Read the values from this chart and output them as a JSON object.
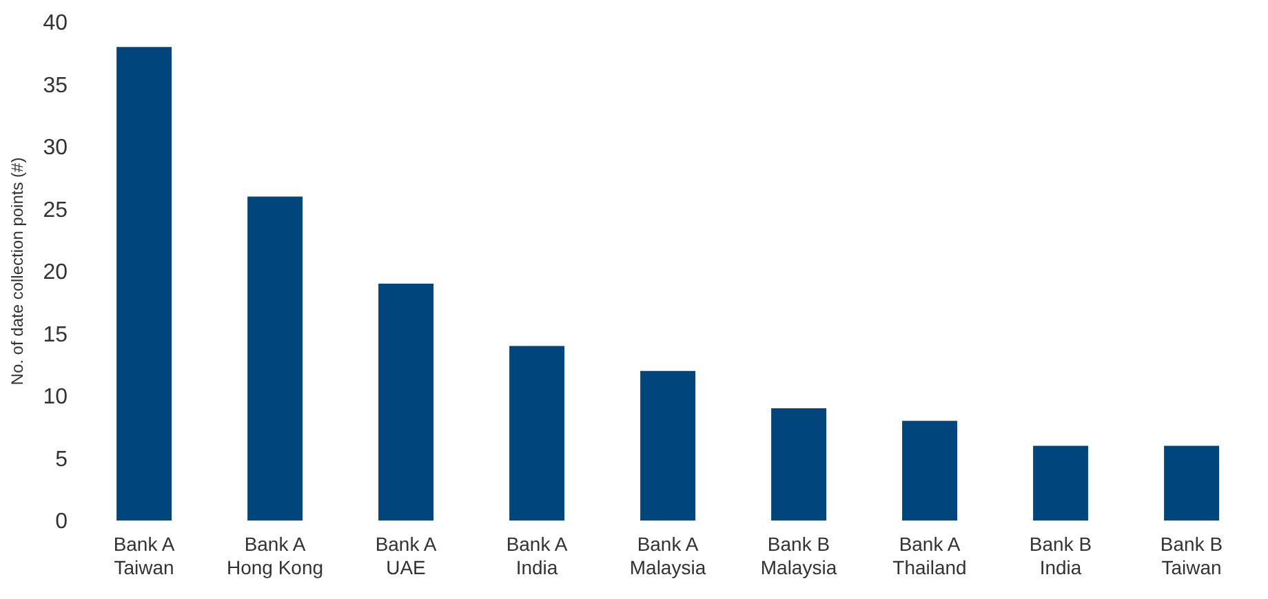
{
  "chart_data": {
    "type": "bar",
    "ylabel": "No. of date collection points (#)",
    "categories": [
      "Bank A\nTaiwan",
      "Bank A\nHong Kong",
      "Bank A\nUAE",
      "Bank A\nIndia",
      "Bank A\nMalaysia",
      "Bank B\nMalaysia",
      "Bank A\nThailand",
      "Bank B\nIndia",
      "Bank B\nTaiwan"
    ],
    "values": [
      38,
      26,
      19,
      14,
      12,
      9,
      8,
      6,
      6
    ],
    "color": "#00457c",
    "ylim": [
      0,
      40
    ],
    "yticks": [
      0,
      5,
      10,
      15,
      20,
      25,
      30,
      35,
      40
    ],
    "grid": false
  }
}
